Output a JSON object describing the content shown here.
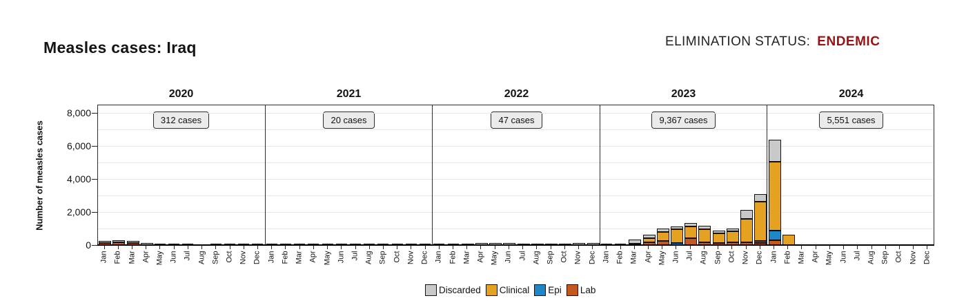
{
  "header": {
    "title": "Measles cases: Iraq",
    "status_label": "ELIMINATION STATUS:",
    "status_value": "ENDEMIC",
    "status_color": "#991112"
  },
  "chart_data": {
    "type": "bar",
    "stacked": true,
    "ylabel": "Number of measles cases",
    "ylim": [
      0,
      8500
    ],
    "yticks": [
      0,
      2000,
      4000,
      6000,
      8000
    ],
    "ytick_labels": [
      "0",
      "2,000",
      "4,000",
      "6,000",
      "8,000"
    ],
    "minor_grid_step": 1000,
    "grid": true,
    "months": [
      "Jan",
      "Feb",
      "Mar",
      "Apr",
      "May",
      "Jun",
      "Jul",
      "Aug",
      "Sep",
      "Oct",
      "Nov",
      "Dec"
    ],
    "legend_position": "bottom-center",
    "legend": [
      {
        "name": "Discarded",
        "color": "#C9C9C9"
      },
      {
        "name": "Clinical",
        "color": "#E4A122"
      },
      {
        "name": "Epi",
        "color": "#1E87C8"
      },
      {
        "name": "Lab",
        "color": "#C2591F"
      }
    ],
    "stack_order_bottom_to_top": [
      "lab",
      "epi",
      "clinical",
      "discarded"
    ],
    "panels": [
      {
        "year": "2020",
        "annotation": "312 cases",
        "lab": [
          90,
          130,
          80,
          0,
          0,
          0,
          0,
          null,
          0,
          0,
          0,
          0
        ],
        "epi": [
          0,
          0,
          0,
          0,
          0,
          0,
          0,
          null,
          0,
          0,
          0,
          0
        ],
        "clinical": [
          0,
          0,
          0,
          0,
          0,
          0,
          0,
          null,
          0,
          0,
          0,
          0
        ],
        "discarded": [
          50,
          60,
          80,
          70,
          25,
          25,
          25,
          null,
          20,
          20,
          20,
          15
        ]
      },
      {
        "year": "2021",
        "annotation": "20 cases",
        "lab": [
          0,
          0,
          0,
          0,
          0,
          0,
          0,
          0,
          0,
          0,
          0,
          0
        ],
        "epi": [
          0,
          0,
          0,
          0,
          0,
          0,
          0,
          0,
          0,
          0,
          0,
          0
        ],
        "clinical": [
          0,
          0,
          0,
          0,
          0,
          0,
          0,
          0,
          0,
          0,
          0,
          0
        ],
        "discarded": [
          12,
          12,
          12,
          12,
          12,
          12,
          12,
          12,
          12,
          12,
          12,
          12
        ]
      },
      {
        "year": "2022",
        "annotation": "47 cases",
        "lab": [
          0,
          0,
          0,
          0,
          0,
          0,
          0,
          0,
          0,
          0,
          0,
          0
        ],
        "epi": [
          0,
          0,
          0,
          0,
          0,
          0,
          0,
          0,
          0,
          0,
          0,
          0
        ],
        "clinical": [
          0,
          0,
          0,
          0,
          0,
          0,
          0,
          0,
          0,
          0,
          0,
          0
        ],
        "discarded": [
          15,
          15,
          45,
          95,
          95,
          95,
          55,
          55,
          55,
          55,
          95,
          95
        ]
      },
      {
        "year": "2023",
        "annotation": "9,367 cases",
        "lab": [
          0,
          0,
          40,
          110,
          220,
          0,
          360,
          140,
          70,
          110,
          140,
          85
        ],
        "epi": [
          0,
          0,
          0,
          0,
          0,
          85,
          0,
          0,
          0,
          0,
          0,
          55
        ],
        "clinical": [
          0,
          0,
          0,
          240,
          475,
          785,
          695,
          720,
          570,
          625,
          1375,
          2360
        ],
        "discarded": [
          20,
          20,
          170,
          150,
          180,
          140,
          140,
          195,
          110,
          140,
          485,
          430
        ]
      },
      {
        "year": "2024",
        "annotation": "5,551 cases",
        "lab": [
          250,
          0,
          null,
          null,
          null,
          null,
          null,
          null,
          null,
          null,
          null,
          null
        ],
        "epi": [
          555,
          0,
          null,
          null,
          null,
          null,
          null,
          null,
          null,
          null,
          null,
          null
        ],
        "clinical": [
          4125,
          600,
          null,
          null,
          null,
          null,
          null,
          null,
          null,
          null,
          null,
          null
        ],
        "discarded": [
          1290,
          0,
          null,
          null,
          null,
          null,
          null,
          null,
          null,
          null,
          null,
          null
        ]
      }
    ]
  }
}
